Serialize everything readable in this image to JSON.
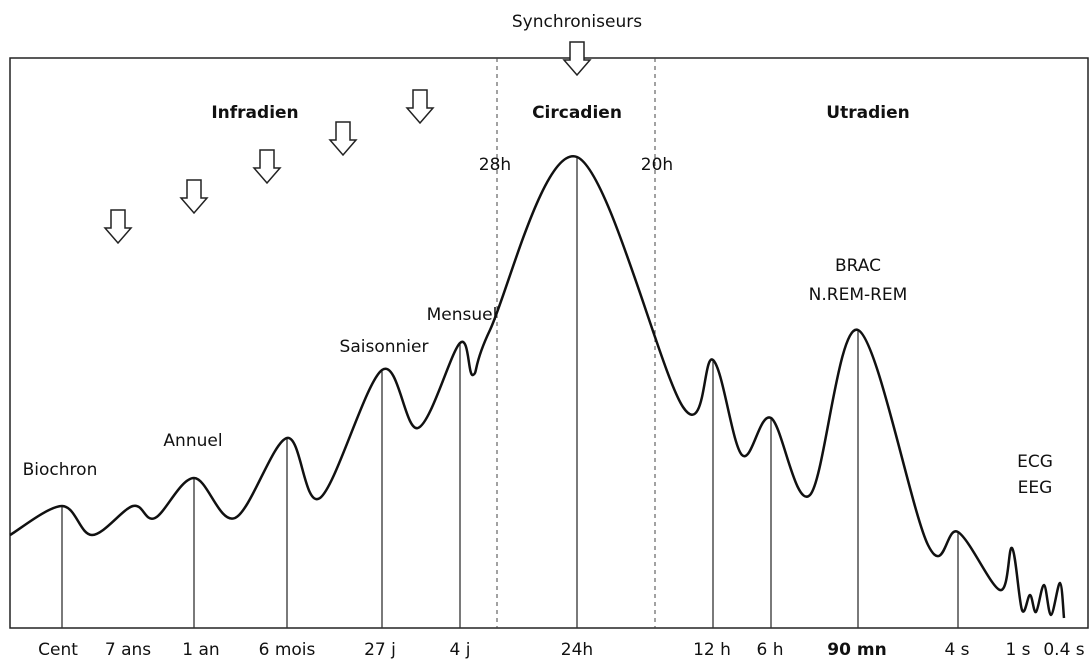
{
  "title": "Synchroniseurs",
  "sections": [
    "Infradien",
    "Circadien",
    "Utradien"
  ],
  "bounds": [
    "28h",
    "20h"
  ],
  "peaks": [
    "Biochron",
    "Annuel",
    "Saisonnier",
    "Mensuel",
    "BRAC",
    "N.REM-REM",
    "ECG",
    "EEG"
  ],
  "periods": [
    "Cent",
    "7 ans",
    "1 an",
    "6 mois",
    "27 j",
    "4 j",
    "24h",
    "12 h",
    "6 h",
    "90 mn",
    "4 s",
    "1 s",
    "0.4 s"
  ]
}
